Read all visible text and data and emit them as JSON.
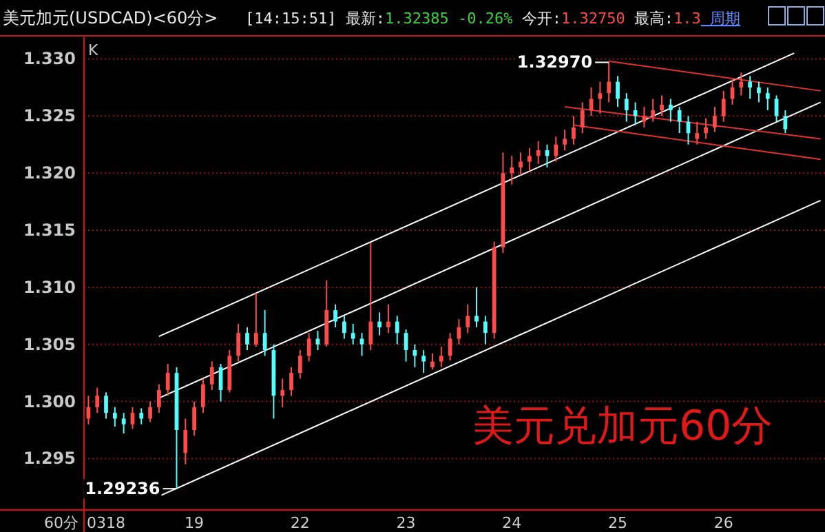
{
  "chart_data": {
    "type": "candlestick",
    "title": "美元加元(USDCAD)<60分>",
    "xlabel": "60分",
    "annotations": [
      "[14:15:51]",
      "最新:",
      "1.32385",
      "-0.26%",
      "今开:",
      "1.32750",
      "最高:",
      "1.3",
      "周期",
      "K",
      "1.32970",
      "1.29236",
      "美元兑加元60分"
    ],
    "categories": [
      null,
      null,
      "0318",
      null,
      null,
      null,
      null,
      null,
      null,
      null,
      null,
      null,
      "19",
      null,
      null,
      null,
      null,
      null,
      null,
      null,
      null,
      null,
      null,
      null,
      "22",
      null,
      null,
      null,
      null,
      null,
      null,
      null,
      null,
      null,
      null,
      null,
      "23",
      null,
      null,
      null,
      null,
      null,
      null,
      null,
      null,
      null,
      null,
      null,
      "24",
      null,
      null,
      null,
      null,
      null,
      null,
      null,
      null,
      null,
      null,
      null,
      "25",
      null,
      null,
      null,
      null,
      null,
      null,
      null,
      null,
      null,
      null,
      null,
      "26",
      null,
      null,
      null,
      null,
      null,
      null,
      null,
      null,
      null,
      null,
      null
    ],
    "colors": [
      "#ff4a4a",
      "#ff4a4a",
      "#54fcfc",
      "#54fcfc",
      "#54fcfc",
      "#ff4a4a",
      "#54fcfc",
      "#ff4a4a",
      "#ff4a4a",
      "#ff4a4a",
      "#54fcfc",
      "#ff4a4a",
      "#ff4a4a",
      "#ff4a4a",
      "#ff4a4a",
      "#54fcfc",
      "#ff4a4a",
      "#ff4a4a",
      "#54fcfc",
      "#ff4a4a",
      "#54fcfc",
      "#54fcfc",
      "#ff4a4a",
      "#ff4a4a",
      "#ff4a4a",
      "#ff4a4a",
      "#54fcfc",
      "#ff4a4a",
      "#54fcfc",
      "#54fcfc",
      "#54fcfc",
      "#54fcfc",
      "#ff4a4a",
      "#54fcfc",
      "#ff4a4a",
      "#54fcfc",
      "#54fcfc",
      "#54fcfc",
      "#54fcfc",
      "#ff4a4a",
      "#ff4a4a",
      "#ff4a4a",
      "#ff4a4a",
      "#ff4a4a",
      "#54fcfc",
      "#54fcfc",
      "#ff4a4a",
      "#ff4a4a",
      "#ff4a4a",
      "#ff4a4a",
      "#ff4a4a",
      "#ff4a4a",
      "#54fcfc",
      "#ff4a4a",
      "#ff4a4a",
      "#ff4a4a",
      "#ff4a4a",
      "#ff4a4a",
      "#ff4a4a",
      "#ff4a4a",
      "#54fcfc",
      "#54fcfc",
      "#54fcfc",
      "#ff4a4a",
      "#ff4a4a",
      "#ff4a4a",
      "#54fcfc",
      "#54fcfc",
      "#54fcfc",
      "#ff4a4a",
      "#ff4a4a",
      "#ff4a4a",
      "#ff4a4a",
      "#ff4a4a",
      "#ff4a4a",
      "#54fcfc",
      "#54fcfc",
      "#54fcfc",
      "#54fcfc",
      "#54fcfc",
      null,
      null,
      null,
      null
    ],
    "ohlc": [
      [
        1.2985,
        1.3005,
        1.298,
        1.2995
      ],
      [
        1.2995,
        1.3012,
        1.299,
        1.3005
      ],
      [
        1.3005,
        1.3008,
        1.2985,
        1.299
      ],
      [
        1.299,
        1.2995,
        1.2978,
        1.2985
      ],
      [
        1.2985,
        1.299,
        1.2972,
        1.298
      ],
      [
        1.298,
        1.2995,
        1.2976,
        1.299
      ],
      [
        1.299,
        1.2994,
        1.298,
        1.2985
      ],
      [
        1.2985,
        1.3,
        1.2982,
        1.2995
      ],
      [
        1.2995,
        1.3015,
        1.299,
        1.301
      ],
      [
        1.301,
        1.3033,
        1.3005,
        1.3025
      ],
      [
        1.3025,
        1.303,
        1.29236,
        1.2975
      ],
      [
        1.2955,
        1.2985,
        1.2945,
        1.2975
      ],
      [
        1.2975,
        1.3,
        1.297,
        1.2995
      ],
      [
        1.2995,
        1.302,
        1.299,
        1.3015
      ],
      [
        1.3015,
        1.3035,
        1.301,
        1.303
      ],
      [
        1.303,
        1.3033,
        1.3,
        1.301
      ],
      [
        1.301,
        1.3045,
        1.3008,
        1.304
      ],
      [
        1.304,
        1.3068,
        1.3035,
        1.306
      ],
      [
        1.306,
        1.3065,
        1.3045,
        1.305
      ],
      [
        1.305,
        1.3095,
        1.3048,
        1.306
      ],
      [
        1.306,
        1.308,
        1.304,
        1.3045
      ],
      [
        1.3045,
        1.305,
        1.2985,
        1.3005
      ],
      [
        1.3005,
        1.302,
        1.2995,
        1.301
      ],
      [
        1.301,
        1.303,
        1.3005,
        1.3025
      ],
      [
        1.3025,
        1.3045,
        1.302,
        1.304
      ],
      [
        1.304,
        1.306,
        1.3035,
        1.3055
      ],
      [
        1.3055,
        1.3062,
        1.3045,
        1.305
      ],
      [
        1.305,
        1.3106,
        1.3048,
        1.308
      ],
      [
        1.308,
        1.3085,
        1.3065,
        1.307
      ],
      [
        1.307,
        1.3075,
        1.3055,
        1.306
      ],
      [
        1.306,
        1.3068,
        1.305,
        1.3055
      ],
      [
        1.3055,
        1.306,
        1.304,
        1.305
      ],
      [
        1.305,
        1.3139,
        1.3045,
        1.307
      ],
      [
        1.307,
        1.3078,
        1.3058,
        1.3065
      ],
      [
        1.3065,
        1.3085,
        1.306,
        1.307
      ],
      [
        1.307,
        1.3075,
        1.305,
        1.306
      ],
      [
        1.306,
        1.3063,
        1.3035,
        1.3045
      ],
      [
        1.3045,
        1.305,
        1.303,
        1.304
      ],
      [
        1.304,
        1.3045,
        1.3025,
        1.3035
      ],
      [
        1.303,
        1.3042,
        1.3028,
        1.3035
      ],
      [
        1.3035,
        1.3048,
        1.303,
        1.304
      ],
      [
        1.304,
        1.306,
        1.3036,
        1.3055
      ],
      [
        1.3055,
        1.3072,
        1.305,
        1.3065
      ],
      [
        1.3065,
        1.3085,
        1.306,
        1.3075
      ],
      [
        1.3075,
        1.31,
        1.3065,
        1.307
      ],
      [
        1.307,
        1.3075,
        1.305,
        1.306
      ],
      [
        1.306,
        1.314,
        1.3055,
        1.3135
      ],
      [
        1.3135,
        1.3218,
        1.313,
        1.32
      ],
      [
        1.32,
        1.3215,
        1.319,
        1.3205
      ],
      [
        1.3205,
        1.3218,
        1.3198,
        1.321
      ],
      [
        1.321,
        1.3222,
        1.3202,
        1.3215
      ],
      [
        1.3215,
        1.3228,
        1.3208,
        1.322
      ],
      [
        1.322,
        1.3225,
        1.3205,
        1.3215
      ],
      [
        1.3215,
        1.3232,
        1.321,
        1.3225
      ],
      [
        1.3225,
        1.3238,
        1.322,
        1.323
      ],
      [
        1.323,
        1.325,
        1.3225,
        1.324
      ],
      [
        1.324,
        1.3262,
        1.3235,
        1.3255
      ],
      [
        1.3255,
        1.3275,
        1.325,
        1.3265
      ],
      [
        1.3265,
        1.328,
        1.3252,
        1.327
      ],
      [
        1.327,
        1.3297,
        1.3262,
        1.328
      ],
      [
        1.328,
        1.3285,
        1.3258,
        1.3265
      ],
      [
        1.3265,
        1.327,
        1.3245,
        1.3255
      ],
      [
        1.3255,
        1.3262,
        1.3242,
        1.325
      ],
      [
        1.3245,
        1.3258,
        1.324,
        1.325
      ],
      [
        1.325,
        1.3265,
        1.3245,
        1.3255
      ],
      [
        1.3255,
        1.3268,
        1.325,
        1.326
      ],
      [
        1.326,
        1.3265,
        1.3245,
        1.3255
      ],
      [
        1.3255,
        1.3258,
        1.3235,
        1.3245
      ],
      [
        1.3245,
        1.325,
        1.3225,
        1.3235
      ],
      [
        1.323,
        1.3245,
        1.3225,
        1.3235
      ],
      [
        1.3235,
        1.3248,
        1.323,
        1.324
      ],
      [
        1.324,
        1.3258,
        1.3236,
        1.325
      ],
      [
        1.325,
        1.3272,
        1.3245,
        1.3265
      ],
      [
        1.3265,
        1.3282,
        1.326,
        1.3275
      ],
      [
        1.3275,
        1.3288,
        1.3268,
        1.328
      ],
      [
        1.328,
        1.3285,
        1.3265,
        1.3275
      ],
      [
        1.3275,
        1.328,
        1.3262,
        1.327
      ],
      [
        1.327,
        1.3275,
        1.3255,
        1.3265
      ],
      [
        1.3265,
        1.3268,
        1.3245,
        1.325
      ],
      [
        1.325,
        1.3255,
        1.3235,
        1.32385
      ],
      null,
      null,
      null,
      null
    ],
    "series": [
      {
        "type": "line",
        "color": "#ffffff",
        "values": [
          null,
          null,
          null,
          null,
          null,
          null,
          null,
          null,
          1.3057,
          null,
          null,
          null,
          null,
          null,
          null,
          null,
          null,
          null,
          null,
          null,
          null,
          null,
          null,
          null,
          null,
          null,
          null,
          null,
          null,
          null,
          null,
          null,
          null,
          null,
          null,
          null,
          null,
          null,
          null,
          null,
          null,
          null,
          null,
          null,
          null,
          null,
          null,
          null,
          null,
          null,
          null,
          null,
          null,
          null,
          null,
          null,
          null,
          null,
          null,
          null,
          null,
          null,
          null,
          null,
          null,
          null,
          null,
          null,
          null,
          null,
          null,
          null,
          null,
          null,
          null,
          null,
          null,
          null,
          null,
          null,
          1.3305,
          null,
          null,
          null
        ]
      },
      {
        "type": "line",
        "color": "#ffffff",
        "values": [
          null,
          null,
          null,
          null,
          null,
          null,
          null,
          null,
          1.3003,
          null,
          null,
          null,
          null,
          null,
          null,
          null,
          null,
          null,
          null,
          null,
          null,
          null,
          null,
          null,
          null,
          null,
          null,
          null,
          null,
          null,
          null,
          null,
          null,
          null,
          null,
          null,
          null,
          null,
          null,
          null,
          null,
          null,
          null,
          null,
          null,
          null,
          null,
          null,
          null,
          null,
          null,
          null,
          null,
          null,
          null,
          null,
          null,
          null,
          null,
          null,
          null,
          null,
          null,
          null,
          null,
          null,
          null,
          null,
          null,
          null,
          null,
          null,
          null,
          null,
          null,
          null,
          null,
          null,
          null,
          null,
          null,
          null,
          null,
          1.3262
        ]
      },
      {
        "type": "line",
        "color": "#ffffff",
        "values": [
          null,
          null,
          null,
          null,
          null,
          null,
          null,
          null,
          1.2917,
          null,
          null,
          null,
          null,
          null,
          null,
          null,
          null,
          null,
          null,
          null,
          null,
          null,
          null,
          null,
          null,
          null,
          null,
          null,
          null,
          null,
          null,
          null,
          null,
          null,
          null,
          null,
          null,
          null,
          null,
          null,
          null,
          null,
          null,
          null,
          null,
          null,
          null,
          null,
          null,
          null,
          null,
          null,
          null,
          null,
          null,
          null,
          null,
          null,
          null,
          null,
          null,
          null,
          null,
          null,
          null,
          null,
          null,
          null,
          null,
          null,
          null,
          null,
          null,
          null,
          null,
          null,
          null,
          null,
          null,
          null,
          null,
          null,
          null,
          1.3176
        ]
      },
      {
        "type": "line",
        "color": "#e03030",
        "values": [
          null,
          null,
          null,
          null,
          null,
          null,
          null,
          null,
          null,
          null,
          null,
          null,
          null,
          null,
          null,
          null,
          null,
          null,
          null,
          null,
          null,
          null,
          null,
          null,
          null,
          null,
          null,
          null,
          null,
          null,
          null,
          null,
          null,
          null,
          null,
          null,
          null,
          null,
          null,
          null,
          null,
          null,
          null,
          null,
          null,
          null,
          null,
          null,
          null,
          null,
          null,
          null,
          null,
          null,
          null,
          null,
          null,
          null,
          null,
          1.3298,
          null,
          null,
          null,
          null,
          null,
          null,
          null,
          null,
          null,
          null,
          null,
          null,
          null,
          null,
          null,
          null,
          null,
          null,
          null,
          null,
          null,
          null,
          null,
          1.3272
        ]
      },
      {
        "type": "line",
        "color": "#e03030",
        "values": [
          null,
          null,
          null,
          null,
          null,
          null,
          null,
          null,
          null,
          null,
          null,
          null,
          null,
          null,
          null,
          null,
          null,
          null,
          null,
          null,
          null,
          null,
          null,
          null,
          null,
          null,
          null,
          null,
          null,
          null,
          null,
          null,
          null,
          null,
          null,
          null,
          null,
          null,
          null,
          null,
          null,
          null,
          null,
          null,
          null,
          null,
          null,
          null,
          null,
          null,
          null,
          null,
          null,
          null,
          1.3258,
          null,
          null,
          null,
          null,
          null,
          null,
          null,
          null,
          null,
          null,
          null,
          null,
          null,
          null,
          null,
          null,
          null,
          null,
          null,
          null,
          null,
          null,
          null,
          null,
          null,
          null,
          null,
          null,
          1.323
        ]
      },
      {
        "type": "line",
        "color": "#e03030",
        "values": [
          null,
          null,
          null,
          null,
          null,
          null,
          null,
          null,
          null,
          null,
          null,
          null,
          null,
          null,
          null,
          null,
          null,
          null,
          null,
          null,
          null,
          null,
          null,
          null,
          null,
          null,
          null,
          null,
          null,
          null,
          null,
          null,
          null,
          null,
          null,
          null,
          null,
          null,
          null,
          null,
          null,
          null,
          null,
          null,
          null,
          null,
          null,
          null,
          null,
          null,
          null,
          null,
          null,
          null,
          null,
          1.3242,
          null,
          null,
          null,
          null,
          null,
          null,
          null,
          null,
          null,
          null,
          null,
          null,
          null,
          null,
          null,
          null,
          null,
          null,
          null,
          null,
          null,
          null,
          null,
          null,
          null,
          null,
          null,
          1.3212
        ]
      }
    ],
    "ylim": [
      1.2905,
      1.3319
    ],
    "yticks": [
      {
        "value": 1.295,
        "label": "1.295"
      },
      {
        "value": 1.3,
        "label": "1.300"
      },
      {
        "value": 1.305,
        "label": "1.305"
      },
      {
        "value": 1.31,
        "label": "1.310"
      },
      {
        "value": 1.315,
        "label": "1.315"
      },
      {
        "value": 1.32,
        "label": "1.320"
      },
      {
        "value": 1.325,
        "label": "1.325"
      },
      {
        "value": 1.33,
        "label": "1.330"
      }
    ],
    "grid": "y"
  }
}
